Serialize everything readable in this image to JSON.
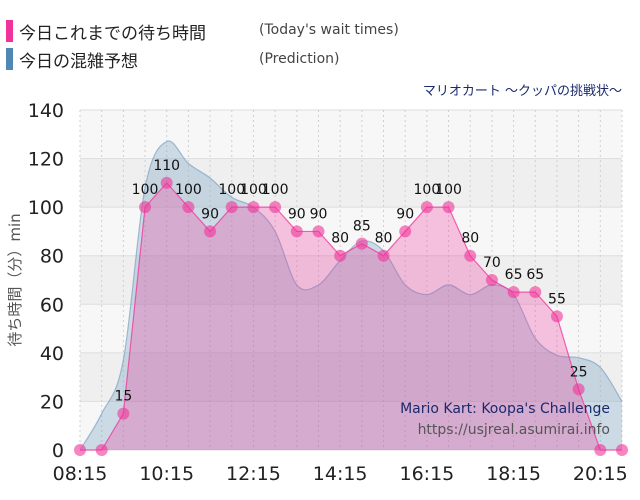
{
  "legend": {
    "actual_label": "今日これまでの待ち時間",
    "actual_sub": "(Today's wait times)",
    "actual_color": "#f0339a",
    "prediction_label": "今日の混雑予想",
    "prediction_sub": "(Prediction)",
    "prediction_color": "#4f87b5"
  },
  "subtitle": "マリオカート 〜クッパの挑戦状〜",
  "attribution": {
    "title": "Mario Kart: Koopa's Challenge",
    "url": "https://usjreal.asumirai.info"
  },
  "chart_data": {
    "type": "area",
    "ylabel": "待ち時間（分）min",
    "ylim": [
      0,
      140
    ],
    "yticks": [
      0,
      20,
      40,
      60,
      80,
      100,
      120,
      140
    ],
    "xlim": [
      "08:15",
      "20:45"
    ],
    "xticks": [
      "08:15",
      "10:15",
      "12:15",
      "14:15",
      "16:15",
      "18:15",
      "20:15"
    ],
    "grid": true,
    "series": [
      {
        "name": "今日これまでの待ち時間",
        "color": "#f0339a",
        "points": [
          {
            "x": "08:15",
            "y": 0
          },
          {
            "x": "08:45",
            "y": 0
          },
          {
            "x": "09:15",
            "y": 15
          },
          {
            "x": "09:45",
            "y": 100
          },
          {
            "x": "10:15",
            "y": 110
          },
          {
            "x": "10:45",
            "y": 100
          },
          {
            "x": "11:15",
            "y": 90
          },
          {
            "x": "11:45",
            "y": 100
          },
          {
            "x": "12:15",
            "y": 100
          },
          {
            "x": "12:45",
            "y": 100
          },
          {
            "x": "13:15",
            "y": 90
          },
          {
            "x": "13:45",
            "y": 90
          },
          {
            "x": "14:15",
            "y": 80
          },
          {
            "x": "14:45",
            "y": 85
          },
          {
            "x": "15:15",
            "y": 80
          },
          {
            "x": "15:45",
            "y": 90
          },
          {
            "x": "16:15",
            "y": 100
          },
          {
            "x": "16:45",
            "y": 100
          },
          {
            "x": "17:15",
            "y": 80
          },
          {
            "x": "17:45",
            "y": 70
          },
          {
            "x": "18:15",
            "y": 65
          },
          {
            "x": "18:45",
            "y": 65
          },
          {
            "x": "19:15",
            "y": 55
          },
          {
            "x": "19:45",
            "y": 25
          },
          {
            "x": "20:15",
            "y": 0
          },
          {
            "x": "20:45",
            "y": 0
          }
        ]
      },
      {
        "name": "今日の混雑予想",
        "color": "#4f87b5",
        "points": [
          {
            "x": "08:15",
            "y": 0
          },
          {
            "x": "08:45",
            "y": 15
          },
          {
            "x": "09:15",
            "y": 37
          },
          {
            "x": "09:45",
            "y": 108
          },
          {
            "x": "10:15",
            "y": 127
          },
          {
            "x": "10:45",
            "y": 118
          },
          {
            "x": "11:15",
            "y": 112
          },
          {
            "x": "11:45",
            "y": 104
          },
          {
            "x": "12:15",
            "y": 100
          },
          {
            "x": "12:45",
            "y": 90
          },
          {
            "x": "13:15",
            "y": 68
          },
          {
            "x": "13:45",
            "y": 68
          },
          {
            "x": "14:15",
            "y": 78
          },
          {
            "x": "14:45",
            "y": 86
          },
          {
            "x": "15:15",
            "y": 82
          },
          {
            "x": "15:45",
            "y": 68
          },
          {
            "x": "16:15",
            "y": 64
          },
          {
            "x": "16:45",
            "y": 68
          },
          {
            "x": "17:15",
            "y": 64
          },
          {
            "x": "17:45",
            "y": 68
          },
          {
            "x": "18:15",
            "y": 64
          },
          {
            "x": "18:45",
            "y": 46
          },
          {
            "x": "19:15",
            "y": 39
          },
          {
            "x": "19:45",
            "y": 38
          },
          {
            "x": "20:15",
            "y": 34
          },
          {
            "x": "20:45",
            "y": 20
          }
        ]
      }
    ]
  }
}
